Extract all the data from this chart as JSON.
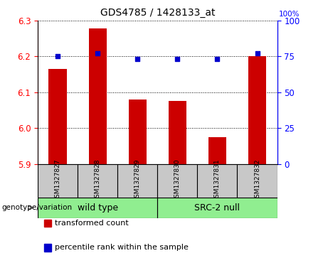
{
  "title": "GDS4785 / 1428133_at",
  "samples": [
    "GSM1327827",
    "GSM1327828",
    "GSM1327829",
    "GSM1327830",
    "GSM1327831",
    "GSM1327832"
  ],
  "transformed_counts": [
    6.165,
    6.278,
    6.08,
    6.075,
    5.975,
    6.2
  ],
  "percentile_ranks": [
    75,
    77,
    73,
    73,
    73,
    77
  ],
  "ylim_left": [
    5.9,
    6.3
  ],
  "ylim_right": [
    0,
    100
  ],
  "yticks_left": [
    5.9,
    6.0,
    6.1,
    6.2,
    6.3
  ],
  "yticks_right": [
    0,
    25,
    50,
    75,
    100
  ],
  "bar_color": "#cc0000",
  "dot_color": "#0000cc",
  "bar_bottom": 5.9,
  "group_box_color": "#c8c8c8",
  "group_colors": [
    "#90ee90",
    "#90ee90"
  ],
  "group_labels": [
    "wild type",
    "SRC-2 null"
  ],
  "group_ranges": [
    [
      0,
      2
    ],
    [
      3,
      5
    ]
  ],
  "genotype_label": "genotype/variation",
  "legend_bar_label": "transformed count",
  "legend_dot_label": "percentile rank within the sample",
  "title_fontsize": 10,
  "tick_fontsize": 8.5,
  "bar_width": 0.45
}
